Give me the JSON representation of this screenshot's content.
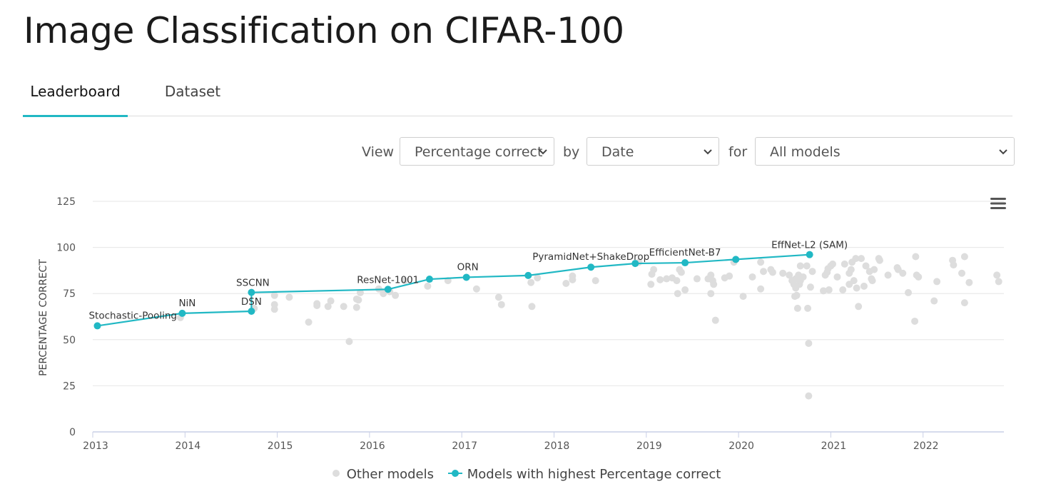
{
  "page": {
    "title": "Image Classification on CIFAR-100"
  },
  "tabs": [
    {
      "label": "Leaderboard",
      "active": true
    },
    {
      "label": "Dataset",
      "active": false
    }
  ],
  "controls": {
    "view_label": "View",
    "view_value": "Percentage correct",
    "by_label": "by",
    "by_value": "Date",
    "for_label": "for",
    "for_value": "All models"
  },
  "colors": {
    "accent": "#21b8c4",
    "other": "#dddddd",
    "grid": "#e6e6e6",
    "axis": "#c9cfe6"
  },
  "chart_data": {
    "type": "scatter",
    "ylabel": "PERCENTAGE CORRECT",
    "xlabel": "",
    "ylim": [
      0,
      125
    ],
    "xlim": [
      2013.0,
      2022.85
    ],
    "yticks": [
      "0",
      "25",
      "50",
      "75",
      "100",
      "125"
    ],
    "xticks": [
      "2013",
      "2014",
      "2015",
      "2016",
      "2017",
      "2018",
      "2019",
      "2020",
      "2021",
      "2022"
    ],
    "series": [
      {
        "name": "Other models",
        "points": [
          [
            2013.95,
            62
          ],
          [
            2014.75,
            67
          ],
          [
            2014.97,
            74
          ],
          [
            2014.97,
            69
          ],
          [
            2014.97,
            66.5
          ],
          [
            2015.13,
            73
          ],
          [
            2015.34,
            59.5
          ],
          [
            2015.43,
            69.5
          ],
          [
            2015.43,
            68.5
          ],
          [
            2015.55,
            68
          ],
          [
            2015.58,
            71
          ],
          [
            2015.72,
            68
          ],
          [
            2015.78,
            49
          ],
          [
            2015.86,
            67.5
          ],
          [
            2015.86,
            72
          ],
          [
            2015.88,
            71.5
          ],
          [
            2015.9,
            75.5
          ],
          [
            2016.1,
            77.5
          ],
          [
            2016.15,
            75
          ],
          [
            2016.22,
            76
          ],
          [
            2016.28,
            74
          ],
          [
            2016.38,
            82
          ],
          [
            2016.63,
            79
          ],
          [
            2016.85,
            82
          ],
          [
            2017.16,
            77.5
          ],
          [
            2017.4,
            73
          ],
          [
            2017.43,
            69
          ],
          [
            2017.75,
            81
          ],
          [
            2017.76,
            68
          ],
          [
            2017.82,
            83.5
          ],
          [
            2018.13,
            80.5
          ],
          [
            2018.2,
            82.5
          ],
          [
            2018.2,
            84.5
          ],
          [
            2018.45,
            82
          ],
          [
            2018.92,
            92
          ],
          [
            2019.05,
            80
          ],
          [
            2019.06,
            85.5
          ],
          [
            2019.08,
            88
          ],
          [
            2019.15,
            82.5
          ],
          [
            2019.22,
            83
          ],
          [
            2019.28,
            83.5
          ],
          [
            2019.33,
            82
          ],
          [
            2019.34,
            75
          ],
          [
            2019.36,
            88
          ],
          [
            2019.38,
            86.5
          ],
          [
            2019.42,
            77
          ],
          [
            2019.55,
            83
          ],
          [
            2019.67,
            83
          ],
          [
            2019.7,
            85
          ],
          [
            2019.7,
            75
          ],
          [
            2019.72,
            82
          ],
          [
            2019.73,
            80
          ],
          [
            2019.75,
            60.5
          ],
          [
            2019.85,
            83.5
          ],
          [
            2019.9,
            84.5
          ],
          [
            2019.95,
            92
          ],
          [
            2020.05,
            73.5
          ],
          [
            2020.15,
            84
          ],
          [
            2020.24,
            92
          ],
          [
            2020.24,
            77.5
          ],
          [
            2020.27,
            87
          ],
          [
            2020.35,
            88
          ],
          [
            2020.37,
            86.5
          ],
          [
            2020.48,
            86
          ],
          [
            2020.55,
            85
          ],
          [
            2020.58,
            82
          ],
          [
            2020.6,
            80
          ],
          [
            2020.61,
            73.5
          ],
          [
            2020.62,
            83
          ],
          [
            2020.62,
            78
          ],
          [
            2020.63,
            74
          ],
          [
            2020.64,
            67
          ],
          [
            2020.65,
            85
          ],
          [
            2020.66,
            80
          ],
          [
            2020.67,
            90
          ],
          [
            2020.67,
            82
          ],
          [
            2020.7,
            84
          ],
          [
            2020.74,
            90
          ],
          [
            2020.75,
            67
          ],
          [
            2020.76,
            48
          ],
          [
            2020.76,
            19.5
          ],
          [
            2020.78,
            78.5
          ],
          [
            2020.8,
            87
          ],
          [
            2020.92,
            76.5
          ],
          [
            2020.94,
            85
          ],
          [
            2020.96,
            86.5
          ],
          [
            2020.97,
            88.5
          ],
          [
            2020.98,
            77
          ],
          [
            2021.0,
            90
          ],
          [
            2021.02,
            91
          ],
          [
            2021.07,
            84
          ],
          [
            2021.13,
            77
          ],
          [
            2021.15,
            91
          ],
          [
            2021.2,
            86
          ],
          [
            2021.2,
            80
          ],
          [
            2021.22,
            88
          ],
          [
            2021.23,
            92
          ],
          [
            2021.25,
            82
          ],
          [
            2021.27,
            94
          ],
          [
            2021.28,
            78
          ],
          [
            2021.3,
            68
          ],
          [
            2021.33,
            94
          ],
          [
            2021.36,
            79
          ],
          [
            2021.38,
            90
          ],
          [
            2021.42,
            87
          ],
          [
            2021.44,
            83
          ],
          [
            2021.45,
            82
          ],
          [
            2021.47,
            88
          ],
          [
            2021.52,
            94
          ],
          [
            2021.53,
            93
          ],
          [
            2021.62,
            85
          ],
          [
            2021.72,
            89
          ],
          [
            2021.73,
            88
          ],
          [
            2021.78,
            86
          ],
          [
            2021.84,
            75.5
          ],
          [
            2021.91,
            60
          ],
          [
            2021.92,
            95
          ],
          [
            2021.93,
            85
          ],
          [
            2021.95,
            84
          ],
          [
            2022.12,
            71
          ],
          [
            2022.15,
            81.5
          ],
          [
            2022.32,
            93
          ],
          [
            2022.33,
            90.5
          ],
          [
            2022.42,
            86
          ],
          [
            2022.45,
            95
          ],
          [
            2022.45,
            70
          ],
          [
            2022.5,
            81
          ],
          [
            2022.8,
            85
          ],
          [
            2022.82,
            81.5
          ]
        ]
      },
      {
        "name": "Models with highest Percentage correct",
        "points": [
          [
            2013.05,
            57.5
          ],
          [
            2013.97,
            64.3
          ],
          [
            2014.72,
            65.4
          ],
          [
            2016.2,
            77.3
          ],
          [
            2016.65,
            82.8
          ],
          [
            2017.05,
            83.8
          ],
          [
            2017.72,
            84.8
          ],
          [
            2018.4,
            89.3
          ],
          [
            2018.88,
            91.3
          ],
          [
            2019.42,
            91.7
          ],
          [
            2019.97,
            93.5
          ],
          [
            2020.77,
            96.1
          ]
        ],
        "line": [
          [
            2013.05,
            57.5
          ],
          [
            2013.97,
            64.3
          ],
          [
            2014.72,
            65.4
          ],
          [
            2014.72,
            75.6
          ],
          [
            2016.2,
            77.3
          ],
          [
            2016.65,
            82.8
          ],
          [
            2017.05,
            83.8
          ],
          [
            2017.72,
            84.8
          ],
          [
            2018.4,
            89.3
          ],
          [
            2018.88,
            91.3
          ],
          [
            2019.42,
            91.7
          ],
          [
            2019.97,
            93.5
          ],
          [
            2020.77,
            96.1
          ]
        ]
      }
    ],
    "annotations": [
      {
        "text": "Stochastic-Pooling",
        "x": 2013.05,
        "y": 57.5
      },
      {
        "text": "NiN",
        "x": 2013.97,
        "y": 64.3
      },
      {
        "text": "DSN",
        "x": 2014.72,
        "y": 65.4
      },
      {
        "text": "SSCNN",
        "x": 2014.72,
        "y": 75.6
      },
      {
        "text": "ResNet-1001",
        "x": 2016.2,
        "y": 77.3
      },
      {
        "text": "ORN",
        "x": 2017.05,
        "y": 83.8
      },
      {
        "text": "PyramidNet+ShakeDrop",
        "x": 2018.4,
        "y": 89.3
      },
      {
        "text": "EfficientNet-B7",
        "x": 2019.42,
        "y": 91.7
      },
      {
        "text": "EffNet-L2 (SAM)",
        "x": 2020.77,
        "y": 96.1
      }
    ],
    "legend": [
      "Other models",
      "Models with highest Percentage correct"
    ],
    "legend_position": "bottom"
  }
}
